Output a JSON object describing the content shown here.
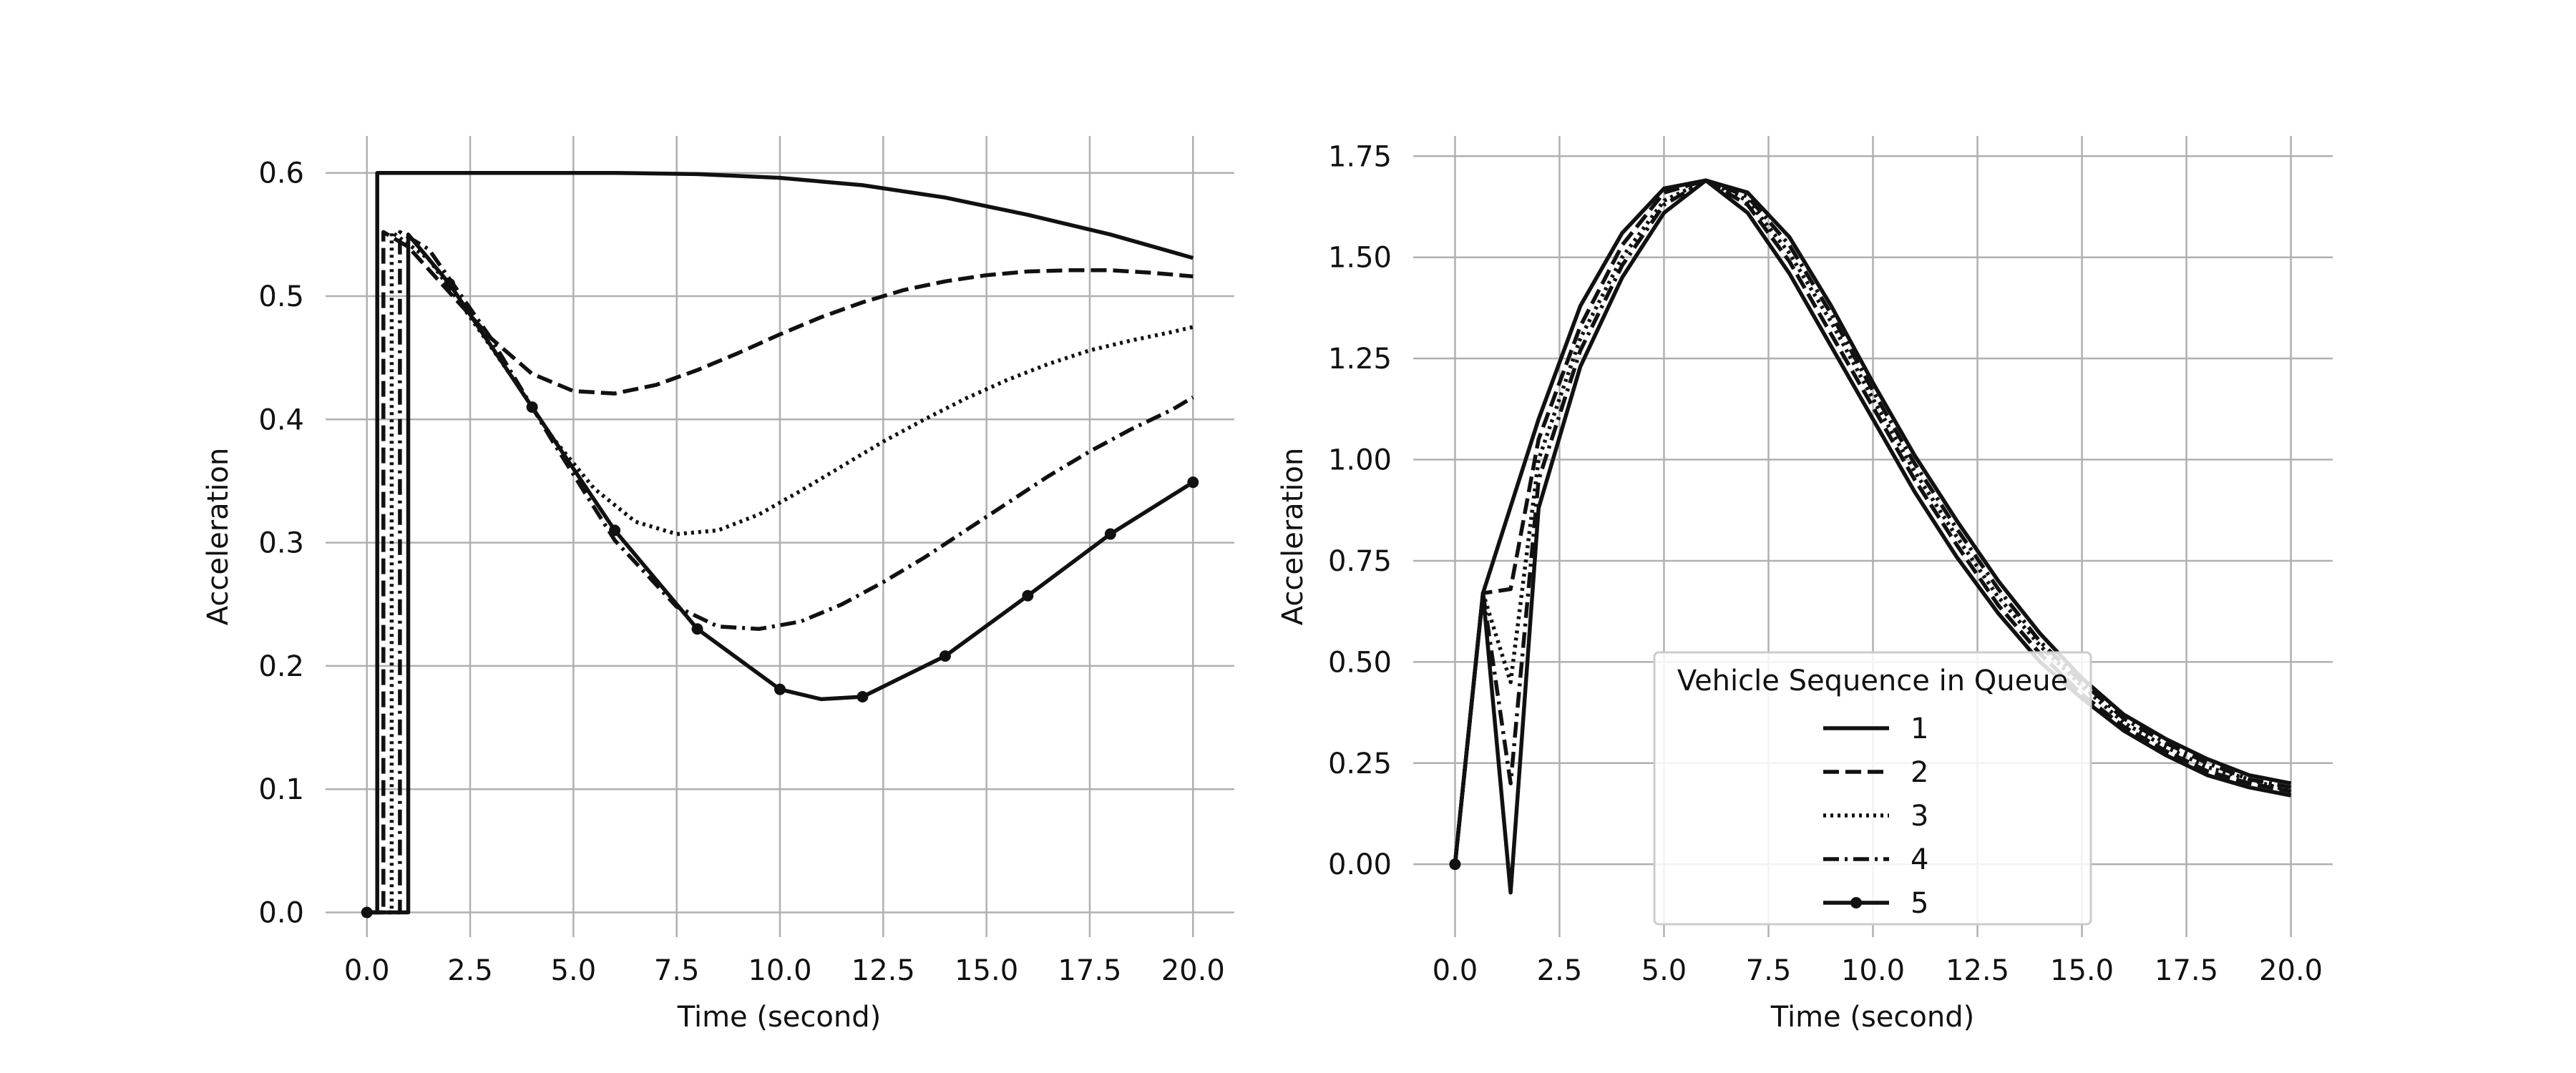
{
  "chart_data": [
    {
      "type": "line",
      "xlabel": "Time (second)",
      "ylabel": "Acceleration",
      "xlim": [
        -1,
        21
      ],
      "ylim": [
        -0.02,
        0.63
      ],
      "xticks": [
        "0.0",
        "2.5",
        "5.0",
        "7.5",
        "10.0",
        "12.5",
        "15.0",
        "17.5",
        "20.0"
      ],
      "yticks": [
        "0.0",
        "0.1",
        "0.2",
        "0.3",
        "0.4",
        "0.5",
        "0.6"
      ],
      "grid": true,
      "series": [
        {
          "name": "1",
          "style": "solid",
          "x": [
            0,
            0.25,
            0.25,
            2,
            4,
            6,
            8,
            10,
            12,
            14,
            16,
            18,
            20
          ],
          "y": [
            0,
            0,
            0.6,
            0.6,
            0.6,
            0.6,
            0.599,
            0.596,
            0.59,
            0.58,
            0.566,
            0.55,
            0.531
          ]
        },
        {
          "name": "2",
          "style": "dashed",
          "x": [
            0,
            0.4,
            0.4,
            1,
            2,
            3,
            4,
            5,
            6,
            7,
            8,
            9,
            10,
            11,
            12,
            13,
            14,
            15,
            16,
            17,
            18,
            19,
            20
          ],
          "y": [
            0,
            0,
            0.552,
            0.54,
            0.503,
            0.466,
            0.437,
            0.423,
            0.421,
            0.428,
            0.44,
            0.454,
            0.469,
            0.483,
            0.495,
            0.505,
            0.512,
            0.517,
            0.52,
            0.521,
            0.521,
            0.519,
            0.516
          ]
        },
        {
          "name": "3",
          "style": "dotted",
          "x": [
            0,
            0.6,
            0.6,
            1.5,
            2.5,
            3.5,
            4.5,
            5.5,
            6.5,
            7.5,
            8.5,
            9.5,
            10.5,
            11.5,
            12.5,
            13.5,
            14.5,
            15.5,
            16.5,
            17.5,
            18.5,
            19.5,
            20
          ],
          "y": [
            0,
            0,
            0.552,
            0.53,
            0.483,
            0.435,
            0.385,
            0.344,
            0.317,
            0.307,
            0.31,
            0.323,
            0.342,
            0.362,
            0.382,
            0.4,
            0.417,
            0.432,
            0.445,
            0.456,
            0.464,
            0.471,
            0.475
          ]
        },
        {
          "name": "4",
          "style": "dashdot",
          "x": [
            0,
            0.8,
            0.8,
            1.5,
            3,
            4.5,
            6,
            7.5,
            8.5,
            9.5,
            10.5,
            11.5,
            12.5,
            13.5,
            14.5,
            15.5,
            16.5,
            17.5,
            18.5,
            19.5,
            20
          ],
          "y": [
            0,
            0,
            0.552,
            0.538,
            0.466,
            0.382,
            0.302,
            0.248,
            0.232,
            0.23,
            0.236,
            0.25,
            0.268,
            0.288,
            0.31,
            0.332,
            0.354,
            0.374,
            0.392,
            0.408,
            0.418
          ]
        },
        {
          "name": "5",
          "style": "solid-marker",
          "x": [
            0,
            1,
            1,
            2,
            4,
            6,
            8,
            10,
            11,
            12,
            14,
            16,
            18,
            20
          ],
          "y": [
            0,
            0,
            0.55,
            0.51,
            0.41,
            0.31,
            0.23,
            0.181,
            0.173,
            0.175,
            0.208,
            0.257,
            0.307,
            0.349
          ],
          "markers_x": [
            0,
            2,
            4,
            6,
            8,
            10,
            12,
            14,
            16,
            18,
            20
          ],
          "markers_y": [
            0,
            0.51,
            0.41,
            0.31,
            0.23,
            0.181,
            0.175,
            0.208,
            0.257,
            0.307,
            0.349
          ]
        }
      ]
    },
    {
      "type": "line",
      "xlabel": "Time (second)",
      "ylabel": "Acceleration",
      "xlim": [
        -1,
        21
      ],
      "ylim": [
        -0.18,
        1.8
      ],
      "xticks": [
        "0.0",
        "2.5",
        "5.0",
        "7.5",
        "10.0",
        "12.5",
        "15.0",
        "17.5",
        "20.0"
      ],
      "yticks": [
        "0.00",
        "0.25",
        "0.50",
        "0.75",
        "1.00",
        "1.25",
        "1.50",
        "1.75"
      ],
      "grid": true,
      "legend": {
        "title": "Vehicle Sequence in Queue",
        "position": "lower-center"
      },
      "series": [
        {
          "name": "1",
          "style": "solid",
          "x": [
            0,
            0.67,
            2,
            3,
            4,
            5,
            6,
            7,
            8,
            9,
            10,
            11,
            12,
            13,
            14,
            15,
            16,
            17,
            18,
            19,
            20
          ],
          "y": [
            0,
            0.67,
            1.1,
            1.38,
            1.56,
            1.67,
            1.69,
            1.61,
            1.46,
            1.28,
            1.1,
            0.92,
            0.76,
            0.62,
            0.5,
            0.41,
            0.33,
            0.27,
            0.22,
            0.19,
            0.17
          ]
        },
        {
          "name": "2",
          "style": "dashed",
          "x": [
            0,
            0.67,
            1.33,
            2,
            3,
            4,
            5,
            6,
            7,
            8,
            9,
            10,
            11,
            12,
            13,
            14,
            15,
            16,
            17,
            18,
            19,
            20
          ],
          "y": [
            0,
            0.67,
            0.68,
            1.05,
            1.33,
            1.53,
            1.66,
            1.69,
            1.63,
            1.49,
            1.31,
            1.13,
            0.95,
            0.79,
            0.64,
            0.52,
            0.42,
            0.34,
            0.28,
            0.23,
            0.2,
            0.18
          ]
        },
        {
          "name": "3",
          "style": "dotted",
          "x": [
            0,
            0.67,
            1.33,
            2,
            3,
            4,
            5,
            6,
            7,
            8,
            9,
            10,
            11,
            12,
            13,
            14,
            15,
            16,
            17,
            18,
            19,
            20
          ],
          "y": [
            0,
            0.67,
            0.45,
            1.0,
            1.3,
            1.5,
            1.64,
            1.69,
            1.64,
            1.51,
            1.34,
            1.15,
            0.97,
            0.81,
            0.66,
            0.54,
            0.44,
            0.35,
            0.29,
            0.24,
            0.21,
            0.18
          ]
        },
        {
          "name": "4",
          "style": "dashdot",
          "x": [
            0,
            0.67,
            1.33,
            2,
            3,
            4,
            5,
            6,
            7,
            8,
            9,
            10,
            11,
            12,
            13,
            14,
            15,
            16,
            17,
            18,
            19,
            20
          ],
          "y": [
            0,
            0.67,
            0.2,
            0.95,
            1.27,
            1.48,
            1.63,
            1.69,
            1.65,
            1.53,
            1.36,
            1.17,
            0.99,
            0.83,
            0.68,
            0.55,
            0.45,
            0.36,
            0.3,
            0.25,
            0.21,
            0.19
          ]
        },
        {
          "name": "5",
          "style": "solid-marker",
          "x": [
            0,
            0.67,
            1.33,
            2,
            3,
            4,
            5,
            6,
            7,
            8,
            9,
            10,
            11,
            12,
            13,
            14,
            15,
            16,
            17,
            18,
            19,
            20
          ],
          "y": [
            0,
            0.67,
            -0.07,
            0.88,
            1.23,
            1.45,
            1.61,
            1.69,
            1.66,
            1.55,
            1.38,
            1.19,
            1.01,
            0.85,
            0.7,
            0.57,
            0.46,
            0.37,
            0.31,
            0.26,
            0.22,
            0.2
          ],
          "markers_x": [
            0
          ],
          "markers_y": [
            0
          ]
        }
      ]
    }
  ]
}
